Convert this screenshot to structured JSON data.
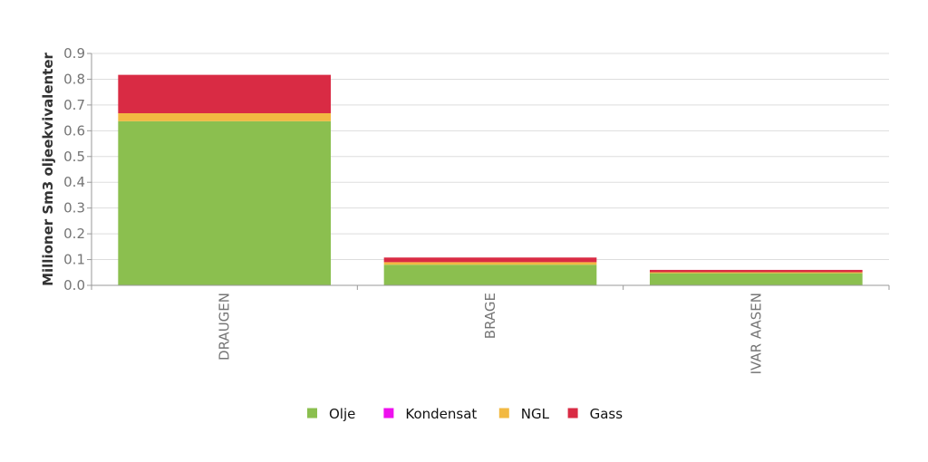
{
  "chart_data": {
    "type": "bar",
    "stacked": true,
    "categories": [
      "DRAUGEN",
      "BRAGE",
      "IVAR AASEN"
    ],
    "series": [
      {
        "name": "Olje",
        "color": "#8bbf4f",
        "values": [
          0.637,
          0.08,
          0.047
        ]
      },
      {
        "name": "Kondensat",
        "color": "#ee10ee",
        "values": [
          0.0,
          0.0,
          0.0
        ]
      },
      {
        "name": "NGL",
        "color": "#f2b942",
        "values": [
          0.031,
          0.01,
          0.004
        ]
      },
      {
        "name": "Gass",
        "color": "#d92b44",
        "values": [
          0.149,
          0.018,
          0.009
        ]
      }
    ],
    "ylabel": "Millioner Sm3 oljeekvivalenter",
    "xlabel": "",
    "ylim": [
      0,
      0.9
    ],
    "yticks": [
      "0.0",
      "0.1",
      "0.2",
      "0.3",
      "0.4",
      "0.5",
      "0.6",
      "0.7",
      "0.8",
      "0.9"
    ],
    "grid": true,
    "legend_position": "bottom-center"
  }
}
